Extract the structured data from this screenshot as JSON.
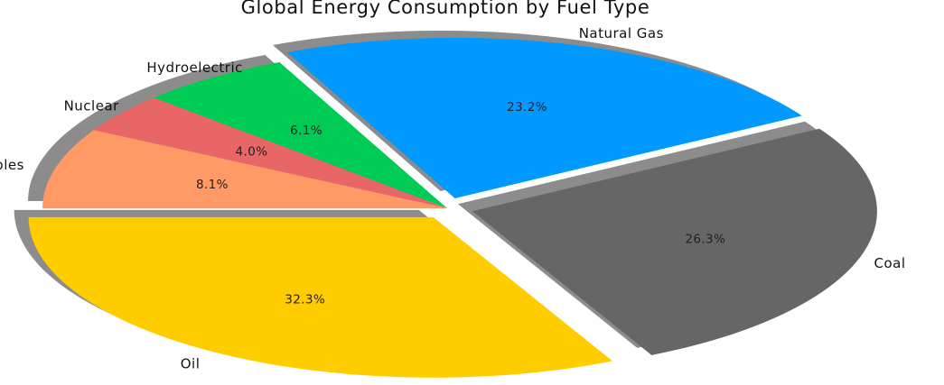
{
  "chart_data": {
    "type": "pie",
    "title": "Global Energy Consumption by Fuel Type",
    "categories": [
      "Oil",
      "Coal",
      "Natural Gas",
      "Hydroelectric",
      "Nuclear",
      "Other Renewables"
    ],
    "values": [
      32.3,
      26.3,
      23.2,
      6.1,
      4.0,
      8.1
    ],
    "value_labels": [
      "32.3%",
      "26.3%",
      "23.2%",
      "6.1%",
      "4.0%",
      "8.1%"
    ],
    "colors": [
      "#ffcc00",
      "#666666",
      "#0099ff",
      "#00cc55",
      "#e86666",
      "#ff9966"
    ],
    "exploded": [
      true,
      true,
      true,
      false,
      false,
      false
    ],
    "shadow": true
  }
}
